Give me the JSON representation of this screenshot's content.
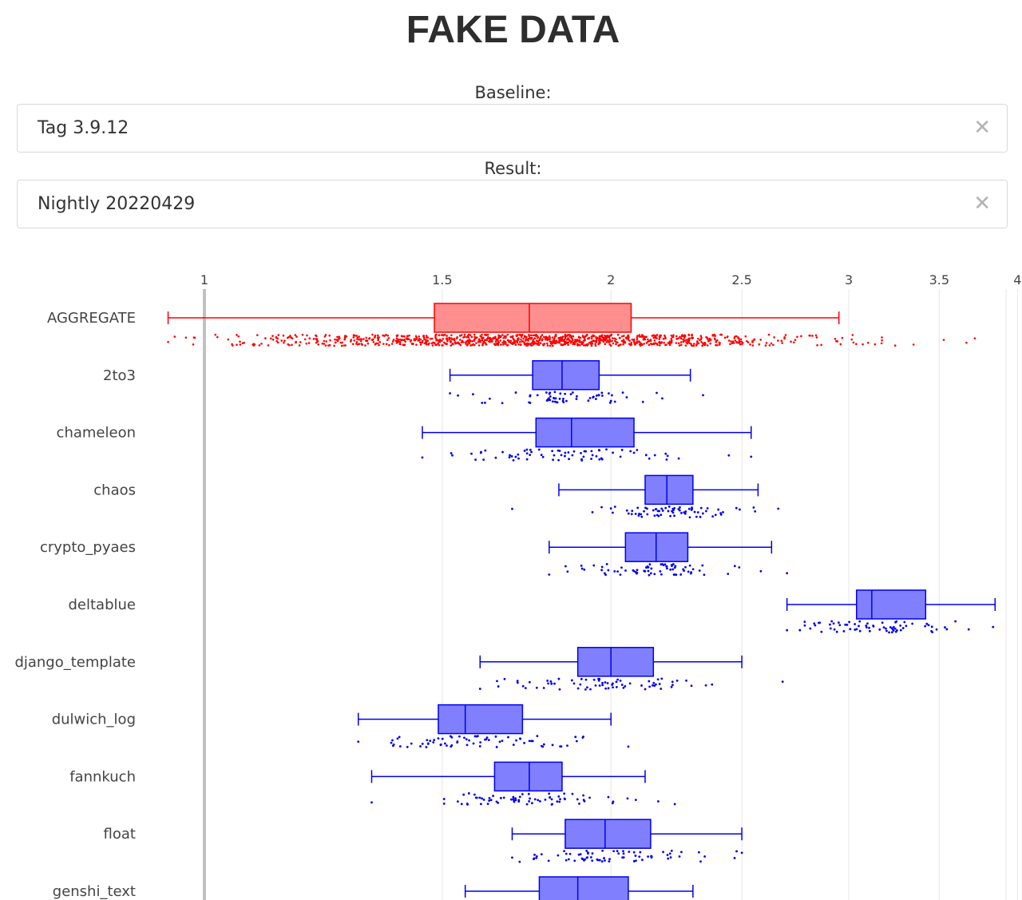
{
  "page": {
    "title": "FAKE DATA"
  },
  "baseline": {
    "label": "Baseline:",
    "value": "Tag 3.9.12",
    "clear_icon": "close-icon"
  },
  "result": {
    "label": "Result:",
    "value": "Nightly 20220429",
    "clear_icon": "close-icon"
  },
  "colors": {
    "aggregate": "#ff0000",
    "aggregate_fill": "#ff8f8f",
    "benchmark": "#0000ee",
    "benchmark_fill": "#8080ff",
    "grid": "#e6e6e6",
    "reference_line": "#c0c0c0"
  },
  "chart_data": {
    "type": "box",
    "orientation": "horizontal",
    "title": "",
    "xaxis": {
      "scale": "log",
      "side": "top",
      "ticks": [
        1,
        1.5,
        2,
        2.5,
        3,
        3.5,
        4
      ],
      "tick_labels": [
        "1",
        "1.5",
        "2",
        "2.5",
        "3",
        "3.5",
        "4"
      ],
      "range": [
        0.94,
        4.3
      ],
      "grid": true
    },
    "reference_line": 1,
    "show_points": "all",
    "series": [
      {
        "name": "AGGREGATE",
        "min": 0.94,
        "q1": 1.48,
        "median": 1.74,
        "q3": 2.07,
        "max": 2.95,
        "points_min": 0.94,
        "points_max": 4.2,
        "n_points": 1100,
        "point_color": "#ff0000"
      },
      {
        "name": "2to3",
        "min": 1.52,
        "q1": 1.75,
        "median": 1.84,
        "q3": 1.96,
        "max": 2.29,
        "points_min": 1.52,
        "points_max": 2.34,
        "n_points": 60,
        "point_color": "#0000ee"
      },
      {
        "name": "chameleon",
        "min": 1.45,
        "q1": 1.76,
        "median": 1.87,
        "q3": 2.08,
        "max": 2.54,
        "points_min": 1.45,
        "points_max": 2.54,
        "n_points": 70,
        "point_color": "#0000ee"
      },
      {
        "name": "chaos",
        "min": 1.83,
        "q1": 2.12,
        "median": 2.2,
        "q3": 2.3,
        "max": 2.57,
        "points_min": 1.69,
        "points_max": 2.66,
        "n_points": 70,
        "point_color": "#0000ee"
      },
      {
        "name": "crypto_pyaes",
        "min": 1.8,
        "q1": 2.05,
        "median": 2.16,
        "q3": 2.28,
        "max": 2.63,
        "points_min": 1.8,
        "points_max": 2.7,
        "n_points": 70,
        "point_color": "#0000ee"
      },
      {
        "name": "deltablue",
        "min": 2.7,
        "q1": 3.04,
        "median": 3.12,
        "q3": 3.42,
        "max": 3.85,
        "points_min": 2.7,
        "points_max": 4.2,
        "n_points": 70,
        "point_color": "#0000ee"
      },
      {
        "name": "django_template",
        "min": 1.6,
        "q1": 1.89,
        "median": 2.0,
        "q3": 2.15,
        "max": 2.5,
        "points_min": 1.6,
        "points_max": 2.68,
        "n_points": 70,
        "point_color": "#0000ee"
      },
      {
        "name": "dulwich_log",
        "min": 1.3,
        "q1": 1.49,
        "median": 1.56,
        "q3": 1.72,
        "max": 2.0,
        "points_min": 1.3,
        "points_max": 2.06,
        "n_points": 70,
        "point_color": "#0000ee"
      },
      {
        "name": "fannkuch",
        "min": 1.33,
        "q1": 1.64,
        "median": 1.74,
        "q3": 1.84,
        "max": 2.12,
        "points_min": 1.33,
        "points_max": 2.23,
        "n_points": 70,
        "point_color": "#0000ee"
      },
      {
        "name": "float",
        "min": 1.69,
        "q1": 1.85,
        "median": 1.98,
        "q3": 2.14,
        "max": 2.5,
        "points_min": 1.69,
        "points_max": 2.5,
        "n_points": 70,
        "point_color": "#0000ee"
      },
      {
        "name": "genshi_text",
        "min": 1.56,
        "q1": 1.77,
        "median": 1.89,
        "q3": 2.06,
        "max": 2.3,
        "points_min": 1.56,
        "points_max": 2.3,
        "n_points": 70,
        "point_color": "#0000ee"
      }
    ]
  }
}
